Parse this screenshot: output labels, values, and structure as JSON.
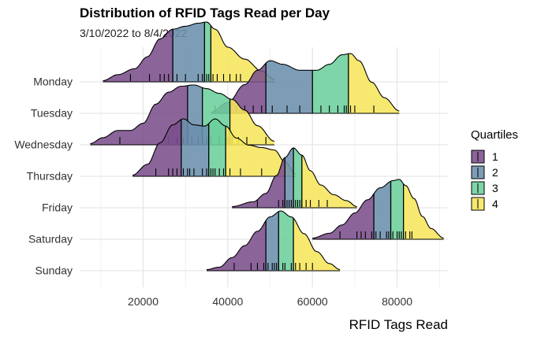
{
  "chart_data": {
    "type": "ridgeline",
    "title": "Distribution of RFID Tags Read per Day",
    "subtitle": "3/10/2022 to 8/4/2022",
    "xlabel": "RFID Tags Read",
    "ylabel": "",
    "xlim": [
      5000,
      92000
    ],
    "xticks": [
      20000,
      40000,
      60000,
      80000
    ],
    "xtick_labels": [
      "20000",
      "40000",
      "60000",
      "80000"
    ],
    "grid": true,
    "legend": {
      "title": "Quartiles",
      "position": "right",
      "entries": [
        {
          "label": "1",
          "color": "#7b4f8c"
        },
        {
          "label": "2",
          "color": "#6b8fad"
        },
        {
          "label": "3",
          "color": "#6ccf9c"
        },
        {
          "label": "4",
          "color": "#f6e65c"
        }
      ]
    },
    "categories": [
      "Monday",
      "Tuesday",
      "Wednesday",
      "Thursday",
      "Friday",
      "Saturday",
      "Sunday"
    ],
    "series": [
      {
        "name": "Monday",
        "density": [
          [
            10500,
            0.02
          ],
          [
            14000,
            0.12
          ],
          [
            18000,
            0.22
          ],
          [
            21000,
            0.42
          ],
          [
            24000,
            0.72
          ],
          [
            27000,
            0.88
          ],
          [
            30000,
            0.93
          ],
          [
            33000,
            0.98
          ],
          [
            35000,
            1.0
          ],
          [
            37000,
            0.88
          ],
          [
            40000,
            0.58
          ],
          [
            44000,
            0.38
          ],
          [
            48000,
            0.18
          ],
          [
            51000,
            0.04
          ]
        ],
        "quantiles": [
          27000,
          34500,
          36000
        ],
        "points": [
          17000,
          21500,
          24000,
          25000,
          26000,
          27000,
          28000,
          30000,
          33000,
          34000,
          35000,
          35500,
          36500,
          37500,
          39000,
          40500,
          42000,
          43000
        ]
      },
      {
        "name": "Tuesday",
        "density": [
          [
            36000,
            0.02
          ],
          [
            40000,
            0.18
          ],
          [
            44000,
            0.48
          ],
          [
            47000,
            0.72
          ],
          [
            50000,
            0.88
          ],
          [
            53000,
            0.82
          ],
          [
            57000,
            0.72
          ],
          [
            61000,
            0.72
          ],
          [
            64000,
            0.82
          ],
          [
            67000,
            0.98
          ],
          [
            69000,
            1.0
          ],
          [
            71000,
            0.88
          ],
          [
            74000,
            0.52
          ],
          [
            77000,
            0.26
          ],
          [
            80500,
            0.04
          ]
        ],
        "quantiles": [
          49000,
          60000,
          68500
        ],
        "points": [
          37000,
          42000,
          44000,
          46000,
          48000,
          50500,
          54000,
          57000,
          62000,
          64000,
          66000,
          67500,
          68000,
          68500,
          69000,
          70000,
          74500
        ]
      },
      {
        "name": "Wednesday",
        "density": [
          [
            7500,
            0.02
          ],
          [
            10500,
            0.12
          ],
          [
            14000,
            0.24
          ],
          [
            17000,
            0.24
          ],
          [
            20000,
            0.36
          ],
          [
            23000,
            0.68
          ],
          [
            26000,
            0.88
          ],
          [
            29000,
            0.98
          ],
          [
            32000,
            1.0
          ],
          [
            35000,
            0.94
          ],
          [
            38000,
            0.86
          ],
          [
            41000,
            0.76
          ],
          [
            44000,
            0.58
          ],
          [
            47000,
            0.32
          ],
          [
            51000,
            0.06
          ]
        ],
        "quantiles": [
          30500,
          34000,
          40500
        ],
        "points": [
          14500,
          26000,
          28000,
          29500,
          30500,
          31500,
          33000,
          34000,
          35000,
          36000,
          38000,
          39500,
          40000,
          41000,
          42500,
          44500,
          49000
        ]
      },
      {
        "name": "Thursday",
        "density": [
          [
            17500,
            0.02
          ],
          [
            21000,
            0.2
          ],
          [
            24000,
            0.56
          ],
          [
            27000,
            0.86
          ],
          [
            29500,
            0.96
          ],
          [
            32000,
            0.86
          ],
          [
            34500,
            0.84
          ],
          [
            37000,
            0.96
          ],
          [
            39500,
            0.84
          ],
          [
            42000,
            0.64
          ],
          [
            45000,
            0.52
          ],
          [
            48000,
            0.48
          ],
          [
            51000,
            0.44
          ],
          [
            53500,
            0.24
          ],
          [
            56000,
            0.04
          ]
        ],
        "quantiles": [
          29000,
          35500,
          39500
        ],
        "points": [
          23000,
          26000,
          27000,
          28000,
          29500,
          30500,
          31000,
          32000,
          34000,
          35000,
          36000,
          36500,
          37000,
          38000,
          39000,
          40500,
          43000,
          48000
        ]
      },
      {
        "name": "Friday",
        "density": [
          [
            41000,
            0.02
          ],
          [
            46000,
            0.1
          ],
          [
            49000,
            0.24
          ],
          [
            51500,
            0.54
          ],
          [
            53500,
            0.84
          ],
          [
            55500,
            1.0
          ],
          [
            57500,
            0.88
          ],
          [
            59500,
            0.62
          ],
          [
            62000,
            0.38
          ],
          [
            65000,
            0.22
          ],
          [
            68000,
            0.12
          ],
          [
            70500,
            0.02
          ]
        ],
        "quantiles": [
          53500,
          55500,
          57500
        ],
        "points": [
          47000,
          52000,
          53000,
          53500,
          54000,
          54500,
          55000,
          55500,
          56000,
          56500,
          57000,
          57500,
          58500,
          59500,
          61500,
          63500
        ]
      },
      {
        "name": "Saturday",
        "density": [
          [
            60000,
            0.02
          ],
          [
            64000,
            0.1
          ],
          [
            67000,
            0.24
          ],
          [
            70000,
            0.44
          ],
          [
            73000,
            0.66
          ],
          [
            76000,
            0.86
          ],
          [
            79000,
            0.98
          ],
          [
            80500,
            1.0
          ],
          [
            82000,
            0.9
          ],
          [
            84000,
            0.68
          ],
          [
            86000,
            0.38
          ],
          [
            88000,
            0.18
          ],
          [
            91000,
            0.02
          ]
        ],
        "quantiles": [
          74500,
          78500,
          81500
        ],
        "points": [
          66500,
          70500,
          71500,
          72500,
          74000,
          74500,
          75000,
          76000,
          77500,
          78000,
          79000,
          80000,
          80500,
          81000,
          82000,
          83000,
          83500
        ]
      },
      {
        "name": "Sunday",
        "density": [
          [
            35000,
            0.02
          ],
          [
            38000,
            0.06
          ],
          [
            41000,
            0.22
          ],
          [
            44000,
            0.42
          ],
          [
            47000,
            0.66
          ],
          [
            50000,
            0.9
          ],
          [
            52500,
            1.0
          ],
          [
            55000,
            0.9
          ],
          [
            58000,
            0.62
          ],
          [
            61000,
            0.32
          ],
          [
            64000,
            0.12
          ],
          [
            66500,
            0.02
          ]
        ],
        "quantiles": [
          49000,
          52000,
          55500
        ],
        "points": [
          41500,
          45500,
          47000,
          48500,
          49500,
          50500,
          51000,
          51500,
          52000,
          53000,
          53500,
          55000,
          56000,
          57000,
          58500,
          60000
        ]
      }
    ]
  }
}
